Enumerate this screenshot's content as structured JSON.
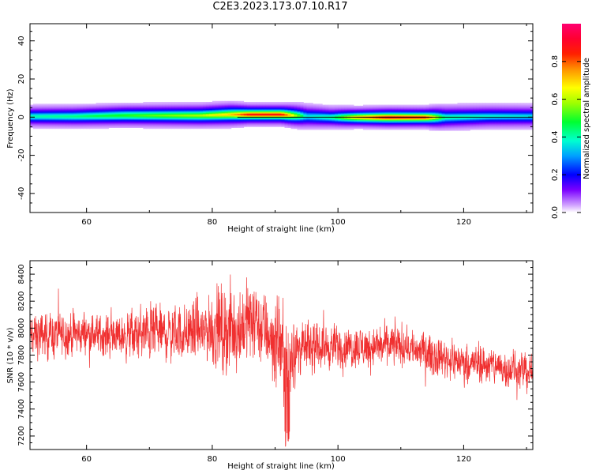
{
  "title": "C2E3.2023.173.07.10.R17",
  "chart_data": [
    {
      "type": "heatmap",
      "xlabel": "Height of straight line (km)",
      "ylabel": "Frequency (Hz)",
      "xlim": [
        51,
        131
      ],
      "ylim": [
        -50,
        49
      ],
      "xticks": [
        60,
        80,
        100,
        120
      ],
      "yticks": [
        40,
        20,
        0,
        -20,
        -40
      ],
      "colorbar": {
        "label": "Normalized spectral amplitude",
        "range": [
          0,
          1
        ],
        "ticks": [
          0.0,
          0.2,
          0.4,
          0.6,
          0.8
        ],
        "tick_labels": [
          "0.0",
          "0.2",
          "0.4",
          "0.6",
          "0.8"
        ],
        "colormap": "gist_rainbow_r"
      },
      "ridge": [
        {
          "x": 51,
          "freq": 0.5,
          "peak": 0.42,
          "halfwidth": 1.6,
          "spread": 6
        },
        {
          "x": 58,
          "freq": 0.5,
          "peak": 0.45,
          "halfwidth": 1.6,
          "spread": 6
        },
        {
          "x": 66,
          "freq": 1.0,
          "peak": 0.52,
          "halfwidth": 1.6,
          "spread": 6
        },
        {
          "x": 72,
          "freq": 1.0,
          "peak": 0.58,
          "halfwidth": 1.5,
          "spread": 6
        },
        {
          "x": 78,
          "freq": 1.0,
          "peak": 0.62,
          "halfwidth": 1.5,
          "spread": 6
        },
        {
          "x": 83,
          "freq": 1.5,
          "peak": 0.75,
          "halfwidth": 1.4,
          "spread": 6
        },
        {
          "x": 86,
          "freq": 1.5,
          "peak": 0.93,
          "halfwidth": 1.2,
          "spread": 5
        },
        {
          "x": 91,
          "freq": 1.5,
          "peak": 0.93,
          "halfwidth": 1.2,
          "spread": 5
        },
        {
          "x": 95,
          "freq": 0.5,
          "peak": 0.38,
          "halfwidth": 1.8,
          "spread": 7
        },
        {
          "x": 99,
          "freq": 0.0,
          "peak": 0.45,
          "halfwidth": 1.5,
          "spread": 6
        },
        {
          "x": 103,
          "freq": 0.0,
          "peak": 0.75,
          "halfwidth": 1.3,
          "spread": 5
        },
        {
          "x": 108,
          "freq": 0.0,
          "peak": 0.95,
          "halfwidth": 1.2,
          "spread": 5
        },
        {
          "x": 114,
          "freq": 0.0,
          "peak": 0.9,
          "halfwidth": 1.2,
          "spread": 5
        },
        {
          "x": 117,
          "freq": 0.0,
          "peak": 0.45,
          "halfwidth": 1.6,
          "spread": 7
        },
        {
          "x": 124,
          "freq": 0.5,
          "peak": 0.4,
          "halfwidth": 1.6,
          "spread": 7
        },
        {
          "x": 131,
          "freq": 0.5,
          "peak": 0.38,
          "halfwidth": 1.6,
          "spread": 7
        }
      ]
    },
    {
      "type": "line",
      "xlabel": "Height of straight line (km)",
      "ylabel": "SNR (10 * v/v)",
      "xlim": [
        51,
        131
      ],
      "ylim": [
        7100,
        8500
      ],
      "xticks": [
        60,
        80,
        100,
        120
      ],
      "yticks": [
        7200,
        7400,
        7600,
        7800,
        8000,
        8200,
        8400
      ],
      "line_color": "#f03030",
      "series": [
        {
          "x": [
            51,
            55,
            60,
            65,
            70,
            75,
            80,
            82,
            84,
            86,
            88,
            90,
            92,
            94,
            96,
            100,
            105,
            110,
            115,
            120,
            125,
            131
          ],
          "values": [
            7940,
            7950,
            7960,
            7940,
            7960,
            7960,
            8000,
            7980,
            8000,
            8060,
            8000,
            7900,
            7800,
            7850,
            7860,
            7860,
            7860,
            7880,
            7800,
            7750,
            7720,
            7670
          ],
          "noise_amplitude": [
            120,
            120,
            110,
            110,
            150,
            150,
            190,
            230,
            230,
            210,
            200,
            230,
            230,
            130,
            120,
            110,
            110,
            110,
            110,
            100,
            100,
            100
          ]
        }
      ]
    }
  ]
}
